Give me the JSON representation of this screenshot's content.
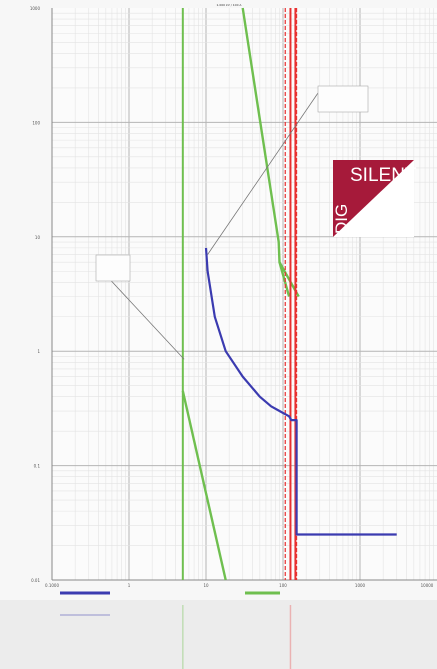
{
  "chart_data": {
    "type": "line",
    "x_scale": "log",
    "y_scale": "log",
    "xlim": [
      0.1,
      10000
    ],
    "ylim": [
      0.01,
      1000
    ],
    "x_ticks": [
      "0.1000",
      "1",
      "10",
      "100",
      "1000",
      "10000"
    ],
    "y_ticks": [
      "1000",
      "100",
      "10",
      "1",
      "0.1",
      "0.01"
    ],
    "grid": true,
    "series": [
      {
        "kind": "vertical",
        "color": "#6fbf4f",
        "x": [
          5
        ]
      },
      {
        "kind": "line",
        "color": "#6fbf4f",
        "x": [
          5,
          18
        ],
        "y": [
          0.45,
          0.01
        ]
      },
      {
        "kind": "line",
        "color": "#6fbf4f",
        "x": [
          30,
          88,
          90,
          160
        ],
        "y": [
          1000,
          9,
          6,
          3
        ]
      },
      {
        "kind": "line",
        "color": "#6fbf4f",
        "x": [
          90,
          120
        ],
        "y": [
          6,
          3
        ]
      },
      {
        "kind": "vertical",
        "color": "#e83030",
        "dashed": true,
        "x": [
          107,
          150
        ]
      },
      {
        "kind": "vertical",
        "color": "#e83030",
        "x": [
          125,
          145
        ]
      },
      {
        "kind": "curve",
        "color": "#3b3bb0",
        "x": [
          10,
          10.5,
          13,
          18,
          30,
          50,
          70,
          90,
          120,
          128,
          150,
          150,
          3000
        ],
        "y": [
          8,
          5,
          2,
          1,
          0.6,
          0.4,
          0.33,
          0.3,
          0.27,
          0.25,
          0.25,
          0.025,
          0.025
        ]
      }
    ],
    "annotation_top": "1.000 kV / 100 A",
    "legend": [
      "",
      ""
    ]
  },
  "logo": {
    "text_top": "SILENT",
    "text_side": "DIG",
    "color": "#a61a3a"
  }
}
